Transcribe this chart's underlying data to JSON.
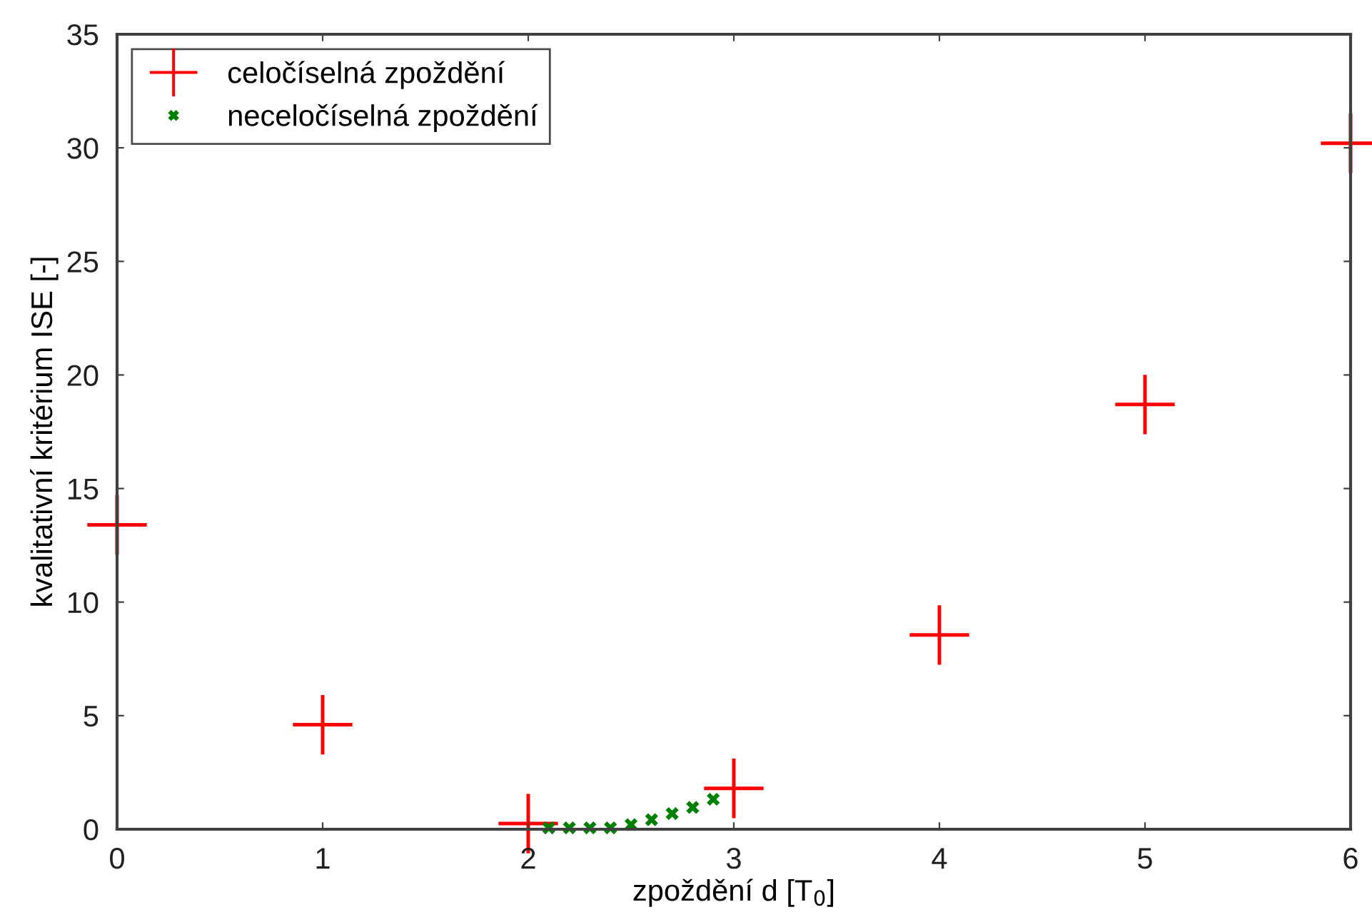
{
  "chart_data": {
    "type": "scatter",
    "xlabel": "zpoždění d [T$_{0}$]",
    "ylabel": "kvalitativní kritérium ISE [-]",
    "xlim": [
      0,
      6
    ],
    "ylim": [
      0,
      35
    ],
    "xticks": [
      0,
      1,
      2,
      3,
      4,
      5,
      6
    ],
    "yticks": [
      0,
      5,
      10,
      15,
      20,
      25,
      30,
      35
    ],
    "grid": false,
    "legend": "top left",
    "series": [
      {
        "name": "celočíselná zpoždění",
        "color": "#ff0000",
        "marker": "cross",
        "x": [
          0,
          1,
          2,
          3,
          4,
          5,
          6
        ],
        "values": [
          13.4,
          4.6,
          0.25,
          1.8,
          8.55,
          18.7,
          30.2
        ]
      },
      {
        "name": "neceločíselná zpoždění",
        "color": "#008000",
        "marker": "x",
        "x": [
          2.1,
          2.2,
          2.3,
          2.4,
          2.5,
          2.6,
          2.7,
          2.8,
          2.9
        ],
        "values": [
          0.06,
          0.06,
          0.06,
          0.06,
          0.2,
          0.42,
          0.69,
          0.96,
          1.32
        ]
      }
    ]
  }
}
